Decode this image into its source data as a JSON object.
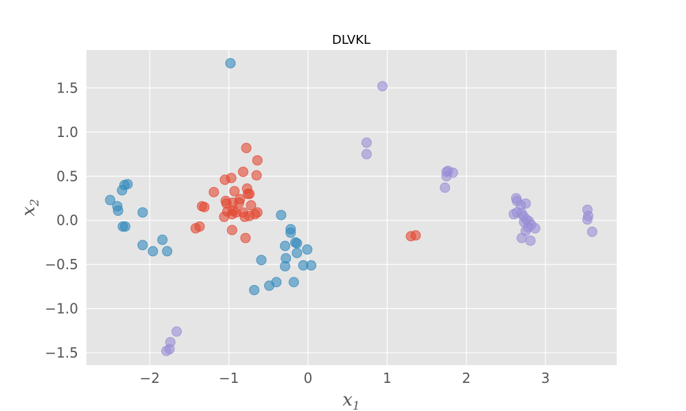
{
  "chart_data": {
    "type": "scatter",
    "title": "DLVKL",
    "xlabel": "x",
    "xlabel_sub": "1",
    "ylabel": "x",
    "ylabel_sub": "2",
    "xlim": [
      -2.8,
      3.9
    ],
    "ylim": [
      -1.64,
      1.93
    ],
    "xticks": [
      -2,
      -1,
      0,
      1,
      2,
      3
    ],
    "xtick_labels": [
      "−2",
      "−1",
      "0",
      "1",
      "2",
      "3"
    ],
    "yticks": [
      -1.5,
      -1.0,
      -0.5,
      0.0,
      0.5,
      1.0,
      1.5
    ],
    "ytick_labels": [
      "−1.5",
      "−1.0",
      "−0.5",
      "0.0",
      "0.5",
      "1.0",
      "1.5"
    ],
    "grid": true,
    "background": "#e5e5e5",
    "series": [
      {
        "color": "#348abd",
        "points": [
          [
            -0.98,
            1.78
          ],
          [
            -2.5,
            0.23
          ],
          [
            -2.41,
            0.16
          ],
          [
            -2.4,
            0.11
          ],
          [
            -2.35,
            0.34
          ],
          [
            -2.32,
            0.4
          ],
          [
            -2.28,
            0.41
          ],
          [
            -2.34,
            -0.07
          ],
          [
            -2.31,
            -0.07
          ],
          [
            -2.09,
            0.09
          ],
          [
            -2.09,
            -0.28
          ],
          [
            -1.96,
            -0.35
          ],
          [
            -1.84,
            -0.22
          ],
          [
            -1.78,
            -0.35
          ],
          [
            -0.59,
            -0.45
          ],
          [
            -0.68,
            -0.79
          ],
          [
            -0.49,
            -0.74
          ],
          [
            -0.4,
            -0.7
          ],
          [
            -0.34,
            0.06
          ],
          [
            -0.29,
            -0.29
          ],
          [
            -0.28,
            -0.43
          ],
          [
            -0.29,
            -0.52
          ],
          [
            -0.22,
            -0.1
          ],
          [
            -0.22,
            -0.14
          ],
          [
            -0.16,
            -0.25
          ],
          [
            -0.14,
            -0.26
          ],
          [
            -0.14,
            -0.37
          ],
          [
            -0.18,
            -0.7
          ],
          [
            -0.06,
            -0.51
          ],
          [
            -0.01,
            -0.33
          ],
          [
            0.04,
            -0.51
          ]
        ]
      },
      {
        "color": "#e24a33",
        "points": [
          [
            -0.78,
            0.82
          ],
          [
            -0.64,
            0.68
          ],
          [
            -0.82,
            0.55
          ],
          [
            -0.65,
            0.51
          ],
          [
            -1.05,
            0.46
          ],
          [
            -0.97,
            0.48
          ],
          [
            -0.77,
            0.36
          ],
          [
            -0.93,
            0.33
          ],
          [
            -1.19,
            0.32
          ],
          [
            -0.76,
            0.3
          ],
          [
            -0.74,
            0.3
          ],
          [
            -0.86,
            0.24
          ],
          [
            -1.04,
            0.22
          ],
          [
            -0.95,
            0.2
          ],
          [
            -1.03,
            0.19
          ],
          [
            -0.87,
            0.2
          ],
          [
            -0.72,
            0.17
          ],
          [
            -1.34,
            0.16
          ],
          [
            -1.31,
            0.15
          ],
          [
            -1.02,
            0.1
          ],
          [
            -0.95,
            0.11
          ],
          [
            -0.91,
            0.09
          ],
          [
            -0.96,
            0.07
          ],
          [
            -0.82,
            0.09
          ],
          [
            -0.64,
            0.09
          ],
          [
            -0.67,
            0.07
          ],
          [
            -1.06,
            0.04
          ],
          [
            -0.8,
            0.04
          ],
          [
            -0.74,
            0.05
          ],
          [
            -1.37,
            -0.07
          ],
          [
            -1.42,
            -0.09
          ],
          [
            -0.96,
            -0.11
          ],
          [
            -0.79,
            -0.2
          ],
          [
            1.3,
            -0.18
          ],
          [
            1.36,
            -0.17
          ]
        ]
      },
      {
        "color": "#988ed5",
        "points": [
          [
            0.94,
            1.52
          ],
          [
            0.74,
            0.88
          ],
          [
            0.74,
            0.75
          ],
          [
            1.77,
            0.56
          ],
          [
            1.75,
            0.55
          ],
          [
            1.83,
            0.54
          ],
          [
            1.75,
            0.5
          ],
          [
            1.73,
            0.37
          ],
          [
            2.63,
            0.25
          ],
          [
            2.64,
            0.22
          ],
          [
            2.75,
            0.19
          ],
          [
            2.69,
            0.17
          ],
          [
            2.7,
            0.08
          ],
          [
            2.64,
            0.09
          ],
          [
            2.6,
            0.07
          ],
          [
            2.72,
            0.05
          ],
          [
            2.76,
            0.01
          ],
          [
            2.79,
            -0.01
          ],
          [
            2.73,
            -0.02
          ],
          [
            2.82,
            -0.05
          ],
          [
            2.78,
            -0.08
          ],
          [
            2.87,
            -0.09
          ],
          [
            2.75,
            -0.12
          ],
          [
            2.7,
            -0.2
          ],
          [
            2.81,
            -0.23
          ],
          [
            3.53,
            0.12
          ],
          [
            3.54,
            0.05
          ],
          [
            3.53,
            0.01
          ],
          [
            3.59,
            -0.13
          ],
          [
            -1.66,
            -1.26
          ],
          [
            -1.74,
            -1.38
          ],
          [
            -1.75,
            -1.46
          ],
          [
            -1.79,
            -1.48
          ]
        ]
      }
    ]
  }
}
